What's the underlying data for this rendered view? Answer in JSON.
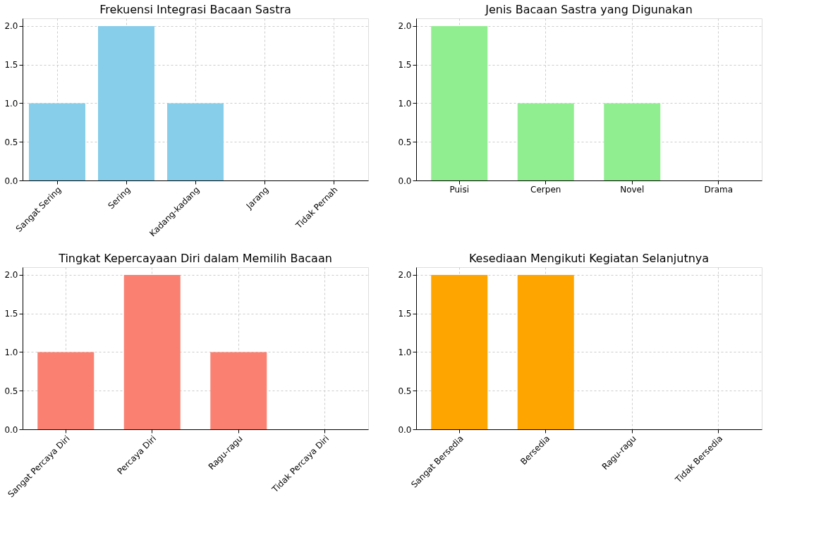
{
  "chart_data": [
    {
      "type": "bar",
      "title": "Frekuensi Integrasi Bacaan Sastra",
      "categories": [
        "Sangat Sering",
        "Sering",
        "Kadang-kadang",
        "Jarang",
        "Tidak Pernah"
      ],
      "values": [
        1,
        2,
        1,
        0,
        0
      ],
      "color": "#87ceeb",
      "ylim": [
        0,
        2.1
      ],
      "yticks": [
        {
          "value": 0,
          "label": "0.0"
        },
        {
          "value": 0.5,
          "label": "0.5"
        },
        {
          "value": 1,
          "label": "1.0"
        },
        {
          "value": 1.5,
          "label": "1.5"
        },
        {
          "value": 2,
          "label": "2.0"
        }
      ],
      "grid": true
    },
    {
      "type": "bar",
      "title": "Jenis Bacaan Sastra yang Digunakan",
      "categories": [
        "Puisi",
        "Cerpen",
        "Novel",
        "Drama"
      ],
      "values": [
        2,
        1,
        1,
        0
      ],
      "color": "#90ee90",
      "ylim": [
        0,
        2.1
      ],
      "yticks": [
        {
          "value": 0,
          "label": "0.0"
        },
        {
          "value": 0.5,
          "label": "0.5"
        },
        {
          "value": 1,
          "label": "1.0"
        },
        {
          "value": 1.5,
          "label": "1.5"
        },
        {
          "value": 2,
          "label": "2.0"
        }
      ],
      "grid": true
    },
    {
      "type": "bar",
      "title": "Tingkat Kepercayaan Diri dalam Memilih Bacaan",
      "categories": [
        "Sangat Percaya Diri",
        "Percaya Diri",
        "Ragu-ragu",
        "Tidak Percaya Diri"
      ],
      "values": [
        1,
        2,
        1,
        0
      ],
      "color": "#fa8072",
      "ylim": [
        0,
        2.1
      ],
      "yticks": [
        {
          "value": 0,
          "label": "0.0"
        },
        {
          "value": 0.5,
          "label": "0.5"
        },
        {
          "value": 1,
          "label": "1.0"
        },
        {
          "value": 1.5,
          "label": "1.5"
        },
        {
          "value": 2,
          "label": "2.0"
        }
      ],
      "grid": true
    },
    {
      "type": "bar",
      "title": "Kesediaan Mengikuti Kegiatan Selanjutnya",
      "categories": [
        "Sangat Bersedia",
        "Bersedia",
        "Ragu-ragu",
        "Tidak Bersedia"
      ],
      "values": [
        2,
        2,
        0,
        0
      ],
      "color": "#ffa500",
      "ylim": [
        0,
        2.1
      ],
      "yticks": [
        {
          "value": 0,
          "label": "0.0"
        },
        {
          "value": 0.5,
          "label": "0.5"
        },
        {
          "value": 1,
          "label": "1.0"
        },
        {
          "value": 1.5,
          "label": "1.5"
        },
        {
          "value": 2,
          "label": "2.0"
        }
      ],
      "grid": true
    }
  ]
}
